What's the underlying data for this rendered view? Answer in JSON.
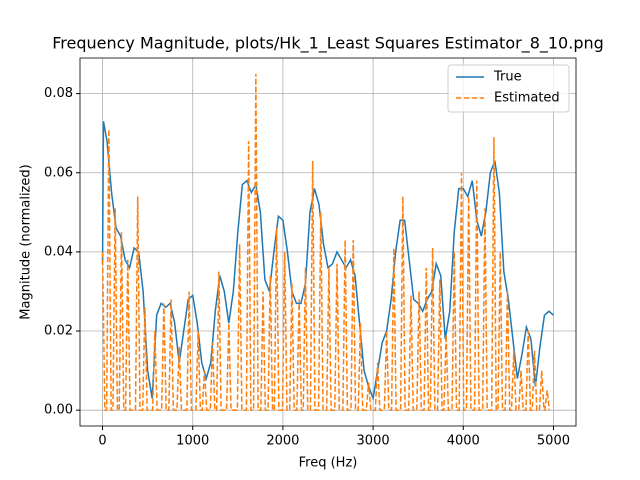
{
  "chart_data": {
    "type": "line",
    "title": "Frequency Magnitude, plots/Hk_1_Least Squares Estimator_8_10.png",
    "xlabel": "Freq (Hz)",
    "ylabel": "Magnitude (normalized)",
    "xlim": [
      -250,
      5250
    ],
    "ylim": [
      -0.004,
      0.089
    ],
    "xticks": [
      0,
      1000,
      2000,
      3000,
      4000,
      5000
    ],
    "yticks": [
      {
        "value": 0,
        "label": "0.00"
      },
      {
        "value": 0.02,
        "label": "0.02"
      },
      {
        "value": 0.04,
        "label": "0.04"
      },
      {
        "value": 0.06,
        "label": "0.06"
      },
      {
        "value": 0.08,
        "label": "0.08"
      }
    ],
    "grid": true,
    "legend": "upper right",
    "series": [
      {
        "name": "True",
        "color": "#1f77b4",
        "linestyle": "solid",
        "x": [
          0,
          10,
          50,
          100,
          150,
          200,
          250,
          300,
          350,
          400,
          450,
          500,
          550,
          600,
          650,
          700,
          750,
          800,
          850,
          900,
          950,
          1000,
          1050,
          1100,
          1150,
          1200,
          1250,
          1300,
          1350,
          1400,
          1450,
          1500,
          1550,
          1600,
          1650,
          1700,
          1750,
          1800,
          1850,
          1900,
          1950,
          2000,
          2050,
          2100,
          2150,
          2200,
          2250,
          2300,
          2350,
          2400,
          2450,
          2500,
          2550,
          2600,
          2650,
          2700,
          2750,
          2800,
          2850,
          2900,
          2950,
          3000,
          3050,
          3100,
          3150,
          3200,
          3250,
          3300,
          3350,
          3400,
          3450,
          3500,
          3550,
          3600,
          3650,
          3700,
          3750,
          3800,
          3850,
          3900,
          3950,
          4000,
          4050,
          4100,
          4150,
          4200,
          4250,
          4300,
          4350,
          4400,
          4450,
          4500,
          4550,
          4600,
          4650,
          4700,
          4750,
          4800,
          4850,
          4900,
          4950,
          5000
        ],
        "values": [
          0.037,
          0.073,
          0.068,
          0.055,
          0.046,
          0.044,
          0.038,
          0.036,
          0.041,
          0.04,
          0.03,
          0.01,
          0.003,
          0.024,
          0.027,
          0.026,
          0.027,
          0.022,
          0.012,
          0.02,
          0.028,
          0.029,
          0.022,
          0.012,
          0.008,
          0.012,
          0.025,
          0.034,
          0.03,
          0.022,
          0.03,
          0.045,
          0.057,
          0.058,
          0.055,
          0.057,
          0.05,
          0.033,
          0.03,
          0.04,
          0.049,
          0.048,
          0.04,
          0.03,
          0.027,
          0.027,
          0.032,
          0.05,
          0.056,
          0.052,
          0.042,
          0.036,
          0.037,
          0.04,
          0.038,
          0.036,
          0.038,
          0.034,
          0.022,
          0.01,
          0.006,
          0.003,
          0.01,
          0.017,
          0.02,
          0.028,
          0.04,
          0.048,
          0.048,
          0.038,
          0.028,
          0.027,
          0.025,
          0.028,
          0.03,
          0.037,
          0.034,
          0.018,
          0.025,
          0.045,
          0.056,
          0.056,
          0.054,
          0.058,
          0.048,
          0.044,
          0.05,
          0.06,
          0.063,
          0.055,
          0.035,
          0.028,
          0.018,
          0.008,
          0.014,
          0.021,
          0.018,
          0.006,
          0.016,
          0.024,
          0.025,
          0.024
        ]
      },
      {
        "name": "Estimated",
        "color": "#ff7f0e",
        "linestyle": "dashed",
        "x": [
          0,
          25,
          45,
          70,
          95,
          115,
          140,
          165,
          185,
          210,
          235,
          255,
          280,
          305,
          365,
          390,
          415,
          445,
          470,
          495,
          555,
          580,
          605,
          655,
          680,
          705,
          735,
          760,
          785,
          825,
          850,
          875,
          935,
          960,
          985,
          1035,
          1060,
          1085,
          1105,
          1130,
          1155,
          1195,
          1220,
          1245,
          1265,
          1290,
          1315,
          1375,
          1400,
          1425,
          1495,
          1520,
          1545,
          1595,
          1620,
          1645,
          1675,
          1700,
          1725,
          1755,
          1780,
          1805,
          1835,
          1860,
          1885,
          1905,
          1930,
          1955,
          1995,
          2020,
          2045,
          2075,
          2100,
          2125,
          2155,
          2180,
          2205,
          2225,
          2250,
          2275,
          2305,
          2330,
          2355,
          2395,
          2420,
          2445,
          2485,
          2510,
          2535,
          2575,
          2600,
          2625,
          2665,
          2690,
          2715,
          2755,
          2780,
          2805,
          2835,
          2860,
          2885,
          2925,
          2950,
          2975,
          3025,
          3050,
          3075,
          3125,
          3150,
          3175,
          3205,
          3230,
          3255,
          3305,
          3330,
          3355,
          3395,
          3420,
          3445,
          3485,
          3510,
          3535,
          3565,
          3590,
          3615,
          3635,
          3660,
          3685,
          3715,
          3740,
          3765,
          3785,
          3810,
          3835,
          3875,
          3900,
          3925,
          3955,
          3980,
          4005,
          4035,
          4060,
          4085,
          4125,
          4150,
          4175,
          4215,
          4240,
          4265,
          4315,
          4340,
          4365,
          4385,
          4410,
          4435,
          4465,
          4490,
          4515,
          4535,
          4560,
          4585,
          4615,
          4640,
          4665,
          4695,
          4720,
          4745,
          4765,
          4790,
          4815,
          4845,
          4870,
          4895,
          4905,
          4930,
          4955
        ],
        "values": [
          0.04,
          0,
          0,
          0.071,
          0,
          0,
          0.051,
          0,
          0,
          0.045,
          0,
          0,
          0.038,
          0,
          0,
          0.054,
          0,
          0,
          0.026,
          0,
          0,
          0.02,
          0,
          0,
          0.027,
          0,
          0,
          0.028,
          0,
          0,
          0.016,
          0,
          0,
          0.03,
          0,
          0,
          0.02,
          0,
          0,
          0.01,
          0,
          0,
          0.017,
          0,
          0,
          0.035,
          0,
          0,
          0.022,
          0,
          0,
          0.042,
          0,
          0,
          0.068,
          0,
          0,
          0.085,
          0,
          0,
          0.03,
          0,
          0,
          0.034,
          0,
          0,
          0.046,
          0,
          0,
          0.04,
          0,
          0,
          0.032,
          0,
          0,
          0.028,
          0,
          0,
          0.036,
          0,
          0,
          0.063,
          0,
          0,
          0.05,
          0,
          0,
          0.036,
          0,
          0,
          0.037,
          0,
          0,
          0.043,
          0,
          0,
          0.043,
          0,
          0,
          0.022,
          0,
          0,
          0.007,
          0,
          0,
          0.012,
          0,
          0,
          0.02,
          0,
          0,
          0.041,
          0,
          0,
          0.054,
          0,
          0,
          0.029,
          0,
          0,
          0.03,
          0,
          0,
          0.036,
          0,
          0,
          0.041,
          0,
          0,
          0.033,
          0,
          0,
          0.019,
          0,
          0,
          0.04,
          0,
          0,
          0.06,
          0,
          0,
          0.054,
          0,
          0,
          0.058,
          0,
          0,
          0.051,
          0,
          0,
          0.069,
          0,
          0,
          0.04,
          0,
          0,
          0.03,
          0,
          0,
          0.015,
          0,
          0,
          0.01,
          0,
          0,
          0.02,
          0,
          0,
          0.015,
          0,
          0,
          0.01,
          0,
          0,
          0.005,
          0
        ]
      }
    ]
  }
}
